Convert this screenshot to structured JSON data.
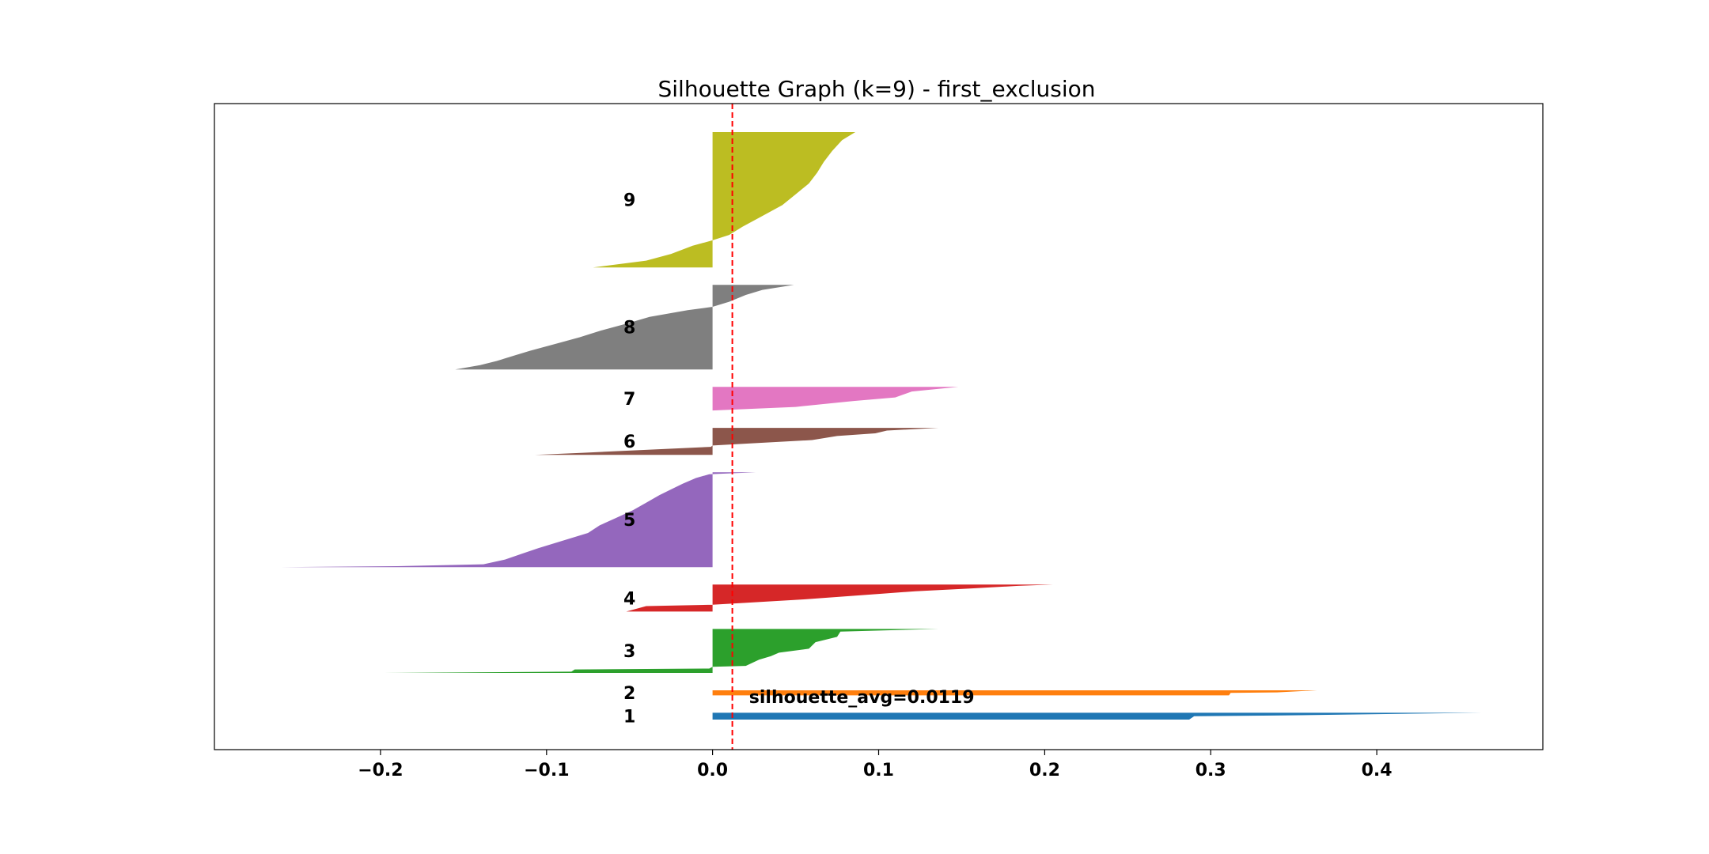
{
  "chart_data": {
    "type": "silhouette",
    "title": "Silhouette Graph (k=9) - first_exclusion",
    "xlim": [
      -0.3,
      0.5
    ],
    "x_ticks": [
      -0.2,
      -0.1,
      0.0,
      0.1,
      0.2,
      0.3,
      0.4
    ],
    "x_tick_labels": [
      "−0.2",
      "−0.1",
      "0.0",
      "0.1",
      "0.2",
      "0.3",
      "0.4"
    ],
    "silhouette_avg": 0.0119,
    "silhouette_avg_label": "silhouette_avg=0.0119",
    "clusters": [
      {
        "label": "1",
        "color": "#1f77b4",
        "size": 4,
        "profile": [
          [
            0,
            0.0
          ],
          [
            0,
            0.287
          ],
          [
            0.5,
            0.29
          ],
          [
            0.6,
            0.338
          ],
          [
            1,
            0.463
          ]
        ]
      },
      {
        "label": "2",
        "color": "#ff7f0e",
        "size": 3,
        "profile": [
          [
            0,
            0.0
          ],
          [
            0,
            0.311
          ],
          [
            0.5,
            0.312
          ],
          [
            0.6,
            0.34
          ],
          [
            1,
            0.364
          ]
        ]
      },
      {
        "label": "3",
        "color": "#2ca02c",
        "size": 26,
        "profile": [
          [
            0,
            -0.198
          ],
          [
            0.03,
            -0.085
          ],
          [
            0.08,
            -0.083
          ],
          [
            0.1,
            -0.002
          ],
          [
            0.14,
            0.0
          ],
          [
            0.16,
            0.02
          ],
          [
            0.3,
            0.028
          ],
          [
            0.38,
            0.035
          ],
          [
            0.46,
            0.04
          ],
          [
            0.55,
            0.058
          ],
          [
            0.7,
            0.062
          ],
          [
            0.82,
            0.075
          ],
          [
            0.94,
            0.077
          ],
          [
            1,
            0.136
          ]
        ]
      },
      {
        "label": "4",
        "color": "#d62728",
        "size": 16,
        "profile": [
          [
            0,
            -0.052
          ],
          [
            0.2,
            -0.04
          ],
          [
            0.25,
            0.0
          ],
          [
            0.45,
            0.055
          ],
          [
            0.65,
            0.1
          ],
          [
            0.75,
            0.122
          ],
          [
            0.85,
            0.155
          ],
          [
            0.95,
            0.184
          ],
          [
            1,
            0.205
          ]
        ]
      },
      {
        "label": "5",
        "color": "#9467bd",
        "size": 56,
        "profile": [
          [
            0,
            -0.26
          ],
          [
            0.01,
            -0.19
          ],
          [
            0.03,
            -0.138
          ],
          [
            0.08,
            -0.125
          ],
          [
            0.14,
            -0.115
          ],
          [
            0.2,
            -0.105
          ],
          [
            0.28,
            -0.09
          ],
          [
            0.36,
            -0.075
          ],
          [
            0.44,
            -0.068
          ],
          [
            0.52,
            -0.058
          ],
          [
            0.6,
            -0.048
          ],
          [
            0.68,
            -0.04
          ],
          [
            0.76,
            -0.032
          ],
          [
            0.82,
            -0.025
          ],
          [
            0.88,
            -0.018
          ],
          [
            0.94,
            -0.01
          ],
          [
            0.98,
            -0.002
          ],
          [
            1,
            0.026
          ]
        ]
      },
      {
        "label": "6",
        "color": "#8c564b",
        "size": 16,
        "profile": [
          [
            0,
            -0.107
          ],
          [
            0.08,
            -0.078
          ],
          [
            0.3,
            -0.001
          ],
          [
            0.35,
            0.0
          ],
          [
            0.55,
            0.06
          ],
          [
            0.7,
            0.075
          ],
          [
            0.8,
            0.098
          ],
          [
            0.9,
            0.105
          ],
          [
            1,
            0.136
          ]
        ]
      },
      {
        "label": "7",
        "color": "#e377c2",
        "size": 14,
        "profile": [
          [
            0,
            0.0
          ],
          [
            0.15,
            0.05
          ],
          [
            0.4,
            0.085
          ],
          [
            0.55,
            0.11
          ],
          [
            0.8,
            0.12
          ],
          [
            1,
            0.148
          ]
        ]
      },
      {
        "label": "8",
        "color": "#7f7f7f",
        "size": 50,
        "profile": [
          [
            0,
            -0.155
          ],
          [
            0.05,
            -0.14
          ],
          [
            0.1,
            -0.13
          ],
          [
            0.16,
            -0.12
          ],
          [
            0.22,
            -0.11
          ],
          [
            0.3,
            -0.095
          ],
          [
            0.38,
            -0.08
          ],
          [
            0.46,
            -0.067
          ],
          [
            0.54,
            -0.052
          ],
          [
            0.62,
            -0.038
          ],
          [
            0.7,
            -0.015
          ],
          [
            0.74,
            0.0
          ],
          [
            0.8,
            0.01
          ],
          [
            0.88,
            0.02
          ],
          [
            0.94,
            0.03
          ],
          [
            1,
            0.049
          ]
        ]
      },
      {
        "label": "9",
        "color": "#bcbd22",
        "size": 80,
        "profile": [
          [
            0,
            -0.072
          ],
          [
            0.05,
            -0.04
          ],
          [
            0.1,
            -0.025
          ],
          [
            0.16,
            -0.012
          ],
          [
            0.2,
            0.0
          ],
          [
            0.24,
            0.01
          ],
          [
            0.3,
            0.018
          ],
          [
            0.38,
            0.03
          ],
          [
            0.46,
            0.042
          ],
          [
            0.54,
            0.05
          ],
          [
            0.62,
            0.058
          ],
          [
            0.7,
            0.063
          ],
          [
            0.78,
            0.067
          ],
          [
            0.86,
            0.072
          ],
          [
            0.94,
            0.078
          ],
          [
            1,
            0.086
          ]
        ]
      }
    ]
  }
}
